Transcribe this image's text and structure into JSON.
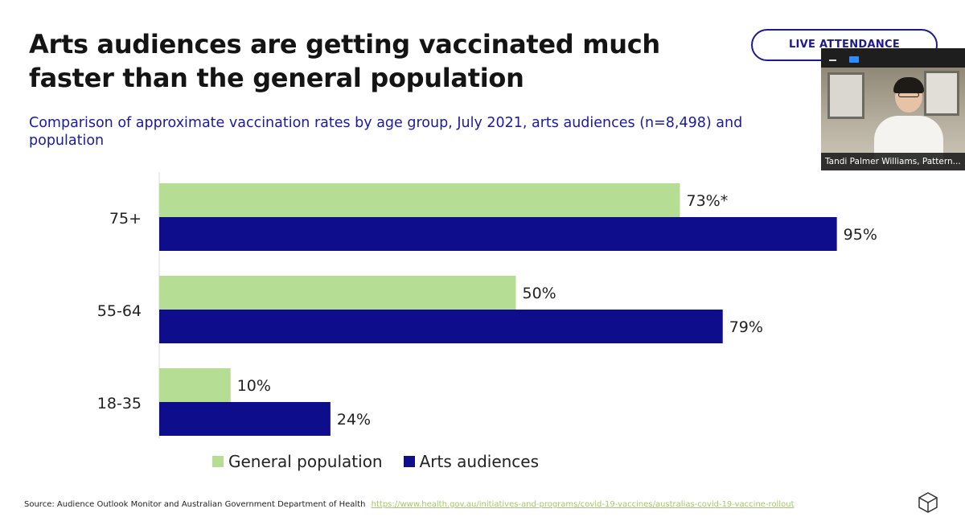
{
  "slide": {
    "title_line1": "Arts audiences are getting vaccinated much",
    "title_line2": "faster than the general population",
    "subtitle_line1": "Comparison of approximate vaccination rates by age group, July 2021, arts audiences (n=8,498) and",
    "subtitle_line2": "population",
    "badge": "LIVE ATTENDANCE",
    "source_text": "Source: Audience Outlook Monitor and Australian Government Department of Health",
    "source_link": "https://www.health.gov.au/initiatives-and-programs/covid-19-vaccines/australias-covid-19-vaccine-rollout"
  },
  "video": {
    "participant_name": "Tandi Palmer Williams, Pattern..."
  },
  "colors": {
    "general": "#b5dd93",
    "arts": "#0e0d8c",
    "title": "#141414",
    "subtitle": "#1b1aa0"
  },
  "chart_data": {
    "type": "bar",
    "orientation": "horizontal",
    "categories": [
      "75+",
      "55-64",
      "18-35"
    ],
    "series": [
      {
        "name": "General population",
        "values": [
          73,
          50,
          10
        ],
        "labels": [
          "73%*",
          "50%",
          "10%"
        ]
      },
      {
        "name": "Arts audiences",
        "values": [
          95,
          79,
          24
        ],
        "labels": [
          "95%",
          "79%",
          "24%"
        ]
      }
    ],
    "xlim": [
      0,
      100
    ],
    "grid": false,
    "legend": "bottom"
  }
}
